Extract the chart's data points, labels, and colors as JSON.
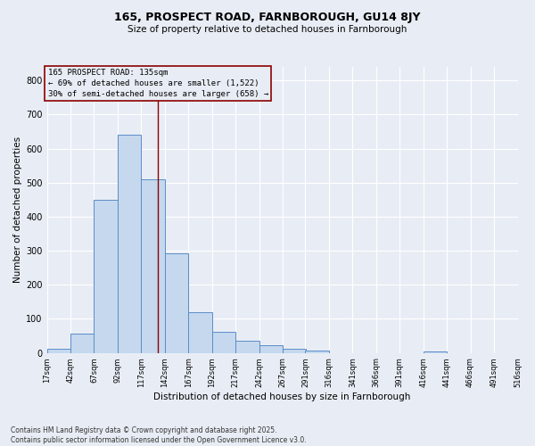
{
  "title": "165, PROSPECT ROAD, FARNBOROUGH, GU14 8JY",
  "subtitle": "Size of property relative to detached houses in Farnborough",
  "xlabel": "Distribution of detached houses by size in Farnborough",
  "ylabel": "Number of detached properties",
  "bar_color": "#c5d8ee",
  "bar_edge_color": "#5b8dc8",
  "background_color": "#e8edf5",
  "annotation_text": "165 PROSPECT ROAD: 135sqm\n← 69% of detached houses are smaller (1,522)\n30% of semi-detached houses are larger (658) →",
  "vline_x": 135,
  "vline_color": "#8b0000",
  "footer_line1": "Contains HM Land Registry data © Crown copyright and database right 2025.",
  "footer_line2": "Contains public sector information licensed under the Open Government Licence v3.0.",
  "bin_starts": [
    17,
    42,
    67,
    92,
    117,
    142,
    167,
    192,
    217,
    242,
    267,
    291,
    316,
    341,
    366,
    391,
    416,
    441,
    466,
    491
  ],
  "bin_width": 25,
  "bar_heights": [
    13,
    57,
    450,
    640,
    510,
    293,
    120,
    62,
    35,
    22,
    12,
    7,
    0,
    0,
    0,
    0,
    5,
    0,
    0,
    0
  ],
  "ylim": [
    0,
    840
  ],
  "yticks": [
    0,
    100,
    200,
    300,
    400,
    500,
    600,
    700,
    800
  ],
  "xlim": [
    17,
    516
  ],
  "tick_positions": [
    17,
    42,
    67,
    92,
    117,
    142,
    167,
    192,
    217,
    242,
    267,
    291,
    316,
    341,
    366,
    391,
    416,
    441,
    466,
    491,
    516
  ],
  "tick_labels": [
    "17sqm",
    "42sqm",
    "67sqm",
    "92sqm",
    "117sqm",
    "142sqm",
    "167sqm",
    "192sqm",
    "217sqm",
    "242sqm",
    "267sqm",
    "291sqm",
    "316sqm",
    "341sqm",
    "366sqm",
    "391sqm",
    "416sqm",
    "441sqm",
    "466sqm",
    "491sqm",
    "516sqm"
  ],
  "grid_color": "#ffffff",
  "title_fontsize": 9,
  "subtitle_fontsize": 7.5,
  "axis_label_fontsize": 7.5,
  "tick_fontsize": 6,
  "footer_fontsize": 5.5
}
